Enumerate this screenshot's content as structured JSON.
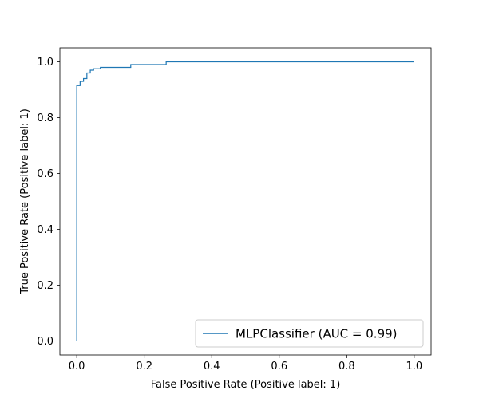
{
  "chart_data": {
    "type": "line",
    "title": "",
    "xlabel": "False Positive Rate (Positive label: 1)",
    "ylabel": "True Positive Rate (Positive label: 1)",
    "xlim": [
      -0.05,
      1.05
    ],
    "ylim": [
      -0.05,
      1.05
    ],
    "xticks": [
      0.0,
      0.2,
      0.4,
      0.6,
      0.8,
      1.0
    ],
    "xtick_labels": [
      "0.0",
      "0.2",
      "0.4",
      "0.6",
      "0.8",
      "1.0"
    ],
    "yticks": [
      0.0,
      0.2,
      0.4,
      0.6,
      0.8,
      1.0
    ],
    "ytick_labels": [
      "0.0",
      "0.2",
      "0.4",
      "0.6",
      "0.8",
      "1.0"
    ],
    "grid": false,
    "legend_position": "lower-right",
    "series": [
      {
        "name": "MLPClassifier (AUC = 0.99)",
        "color": "#1f77b4",
        "x": [
          0.0,
          0.0,
          0.0,
          0.01,
          0.01,
          0.02,
          0.02,
          0.03,
          0.03,
          0.04,
          0.04,
          0.05,
          0.05,
          0.07,
          0.07,
          0.16,
          0.16,
          0.265,
          0.265,
          1.0
        ],
        "y": [
          0.0,
          0.91,
          0.915,
          0.915,
          0.93,
          0.93,
          0.94,
          0.94,
          0.96,
          0.96,
          0.97,
          0.97,
          0.975,
          0.975,
          0.98,
          0.98,
          0.99,
          0.99,
          1.0,
          1.0
        ]
      }
    ]
  }
}
